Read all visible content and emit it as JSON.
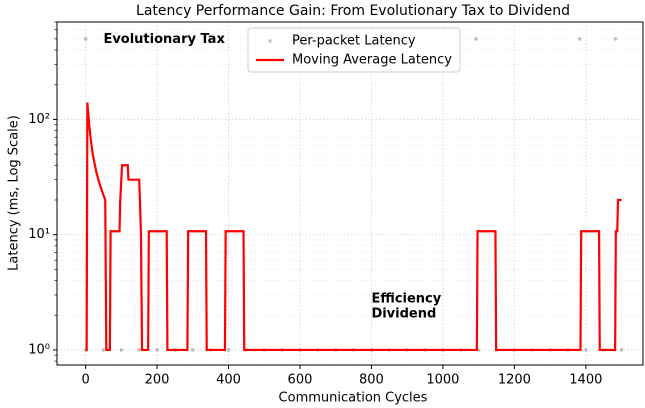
{
  "chart_data": {
    "type": "line",
    "title": "Latency Performance Gain: From Evolutionary Tax to Dividend",
    "xlabel": "Communication Cycles",
    "ylabel": "Latency (ms, Log Scale)",
    "log_y": true,
    "grid": true,
    "legend": "upper center",
    "xlim": [
      -80,
      1560
    ],
    "ylim": [
      0.74,
      700
    ],
    "xticks": [
      0,
      200,
      400,
      600,
      800,
      1000,
      1200,
      1400
    ],
    "yticks": [
      {
        "value": 1,
        "label": "10⁰"
      },
      {
        "value": 10,
        "label": "10¹"
      },
      {
        "value": 100,
        "label": "10²"
      }
    ],
    "series": [
      {
        "name": "Per-packet Latency",
        "type": "scatter",
        "color": "#999999",
        "x": [
          0,
          50,
          100,
          150,
          200,
          250,
          300,
          350,
          400,
          450,
          500,
          550,
          600,
          650,
          700,
          750,
          800,
          850,
          900,
          950,
          1000,
          1050,
          1100,
          1150,
          1200,
          1250,
          1300,
          1350,
          1400,
          1450,
          1500,
          0,
          1093,
          1383,
          1483
        ],
        "values": [
          1,
          1,
          1,
          1,
          1,
          1,
          1,
          1,
          1,
          1,
          1,
          1,
          1,
          1,
          1,
          1,
          1,
          1,
          1,
          1,
          1,
          1,
          1,
          1,
          1,
          1,
          1,
          1,
          1,
          1,
          1,
          500,
          500,
          500,
          500
        ]
      },
      {
        "name": "Moving Average Latency",
        "type": "line",
        "color": "#ff0000",
        "x": [
          0,
          3,
          5,
          10,
          15,
          20,
          30,
          40,
          50,
          55,
          58,
          68,
          70,
          95,
          97,
          100,
          102,
          118,
          120,
          150,
          152,
          155,
          158,
          175,
          177,
          227,
          229,
          285,
          287,
          337,
          339,
          390,
          392,
          442,
          444,
          1095,
          1097,
          1147,
          1149,
          1385,
          1387,
          1437,
          1439,
          1482,
          1484,
          1488,
          1490,
          1500
        ],
        "values": [
          1,
          1,
          140,
          90,
          65,
          50,
          35,
          27,
          22,
          20,
          1,
          1,
          10.7,
          10.7,
          20,
          30,
          40,
          40,
          30,
          30,
          20,
          10,
          1,
          1,
          10.7,
          10.7,
          1,
          1,
          10.7,
          10.7,
          1,
          1,
          10.7,
          10.7,
          1,
          1,
          10.7,
          10.7,
          1,
          1,
          10.7,
          10.7,
          1,
          1,
          10.7,
          10.7,
          20,
          20
        ]
      }
    ],
    "annotations": [
      {
        "text": "Evolutionary Tax",
        "x": 50,
        "y": 500,
        "color": "#ff0000"
      },
      {
        "text": "Efficiency\nDividend",
        "x": 800,
        "y": 2.4,
        "color": "#008000"
      }
    ]
  }
}
